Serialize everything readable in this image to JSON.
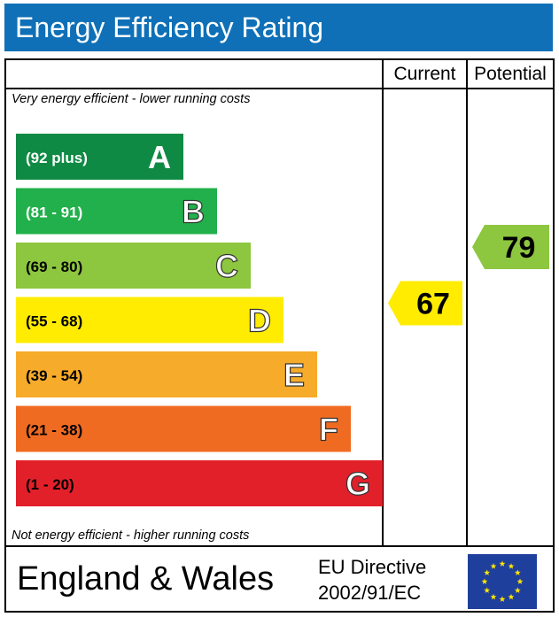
{
  "header": {
    "title": "Energy Efficiency Rating"
  },
  "columns": {
    "current": "Current",
    "potential": "Potential"
  },
  "notes": {
    "top": "Very energy efficient - lower running costs",
    "bottom": "Not energy efficient - higher running costs"
  },
  "footer": {
    "country": "England & Wales",
    "directive_line1": "EU Directive",
    "directive_line2": "2002/91/EC",
    "flag_icon": "eu-flag-icon"
  },
  "chart_data": {
    "type": "bar",
    "title": "Energy Efficiency Rating",
    "bands": [
      {
        "letter": "A",
        "range": "(92 plus)",
        "color": "#0f8a44"
      },
      {
        "letter": "B",
        "range": "(81 - 91)",
        "color": "#21b04b"
      },
      {
        "letter": "C",
        "range": "(69 - 80)",
        "color": "#8dc63f"
      },
      {
        "letter": "D",
        "range": "(55 - 68)",
        "color": "#ffec00"
      },
      {
        "letter": "E",
        "range": "(39 - 54)",
        "color": "#f7ab2a"
      },
      {
        "letter": "F",
        "range": "(21 - 38)",
        "color": "#f06b22"
      },
      {
        "letter": "G",
        "range": "(1 - 20)",
        "color": "#e2202a"
      }
    ],
    "current": {
      "value": 67,
      "band": "D",
      "color": "#ffec00"
    },
    "potential": {
      "value": 79,
      "band": "C",
      "color": "#8dc63f"
    }
  }
}
